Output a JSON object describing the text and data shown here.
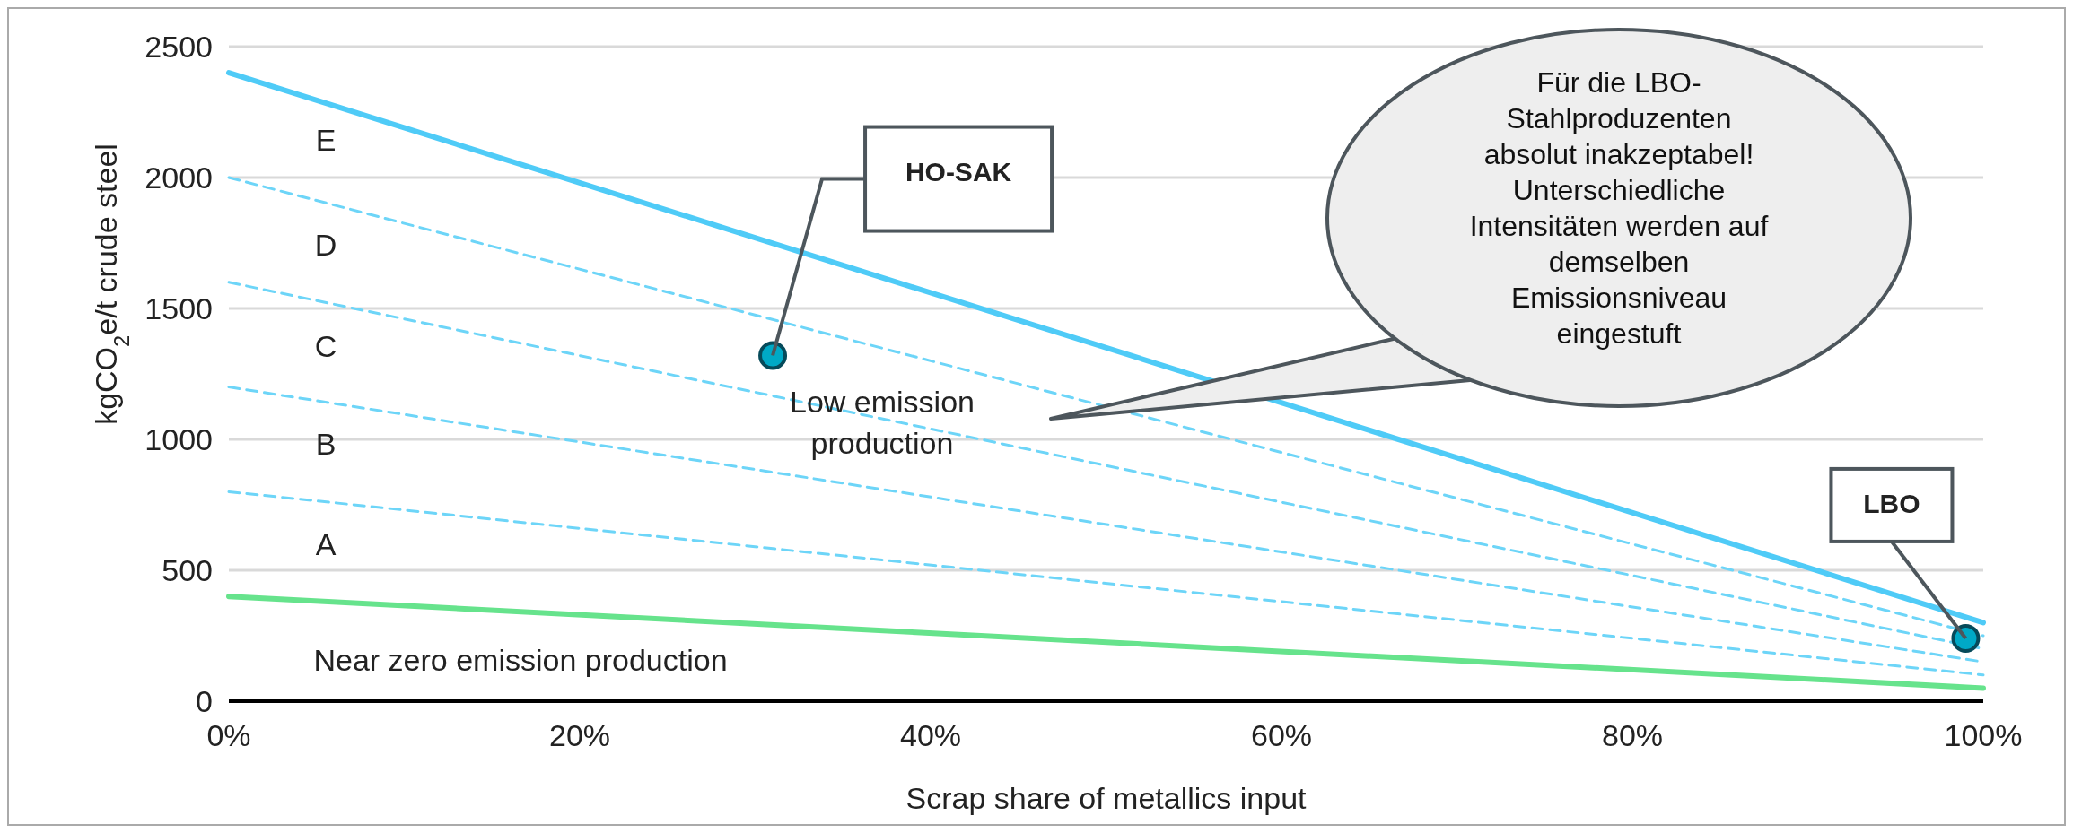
{
  "chart_data": {
    "type": "line",
    "xlabel": "Scrap share of metallics input",
    "ylabel": "kgCO$_{2}$e/t crude steel",
    "xlim": [
      0,
      100
    ],
    "xticks": [
      {
        "value": 0,
        "label": "0%"
      },
      {
        "value": 20,
        "label": "20%"
      },
      {
        "value": 40,
        "label": "40%"
      },
      {
        "value": 60,
        "label": "60%"
      },
      {
        "value": 80,
        "label": "80%"
      },
      {
        "value": 100,
        "label": "100%"
      }
    ],
    "ylim": [
      0,
      2500
    ],
    "yticks": [
      0,
      500,
      1000,
      1500,
      2000,
      2500
    ],
    "grid": "y",
    "series": [
      {
        "color": "#4fcbf7",
        "line_style": "solid",
        "x": [
          0,
          100
        ],
        "values": [
          2400,
          300
        ]
      },
      {
        "color": "#6dd5f8",
        "line_style": "dashed",
        "x": [
          0,
          100
        ],
        "values": [
          2000,
          250
        ]
      },
      {
        "color": "#6dd5f8",
        "line_style": "dashed",
        "x": [
          0,
          100
        ],
        "values": [
          1600,
          200
        ]
      },
      {
        "color": "#6dd5f8",
        "line_style": "dashed",
        "x": [
          0,
          100
        ],
        "values": [
          1200,
          150
        ]
      },
      {
        "color": "#6dd5f8",
        "line_style": "dashed",
        "x": [
          0,
          100
        ],
        "values": [
          800,
          100
        ]
      },
      {
        "color": "#66e38c",
        "line_style": "solid",
        "x": [
          0,
          100
        ],
        "values": [
          400,
          50
        ]
      },
      {
        "type": "scatter",
        "color": "#00a9c6",
        "marker": "circle",
        "x": [
          31,
          99
        ],
        "values": [
          1320,
          240
        ]
      }
    ],
    "annotations": [
      "E",
      "D",
      "C",
      "B",
      "A",
      "Low emission\nproduction",
      "Near zero emission production",
      "HO-SAK",
      {
        "text": "LBO",
        "x": 99,
        "y": 240
      },
      "Für die LBO-\nStahlproduzenten\nabsolut inakzeptabel!\nUnterschiedliche\nIntensitäten werden auf\ndemselben\nEmissionsniveau\neingestuft"
    ]
  }
}
